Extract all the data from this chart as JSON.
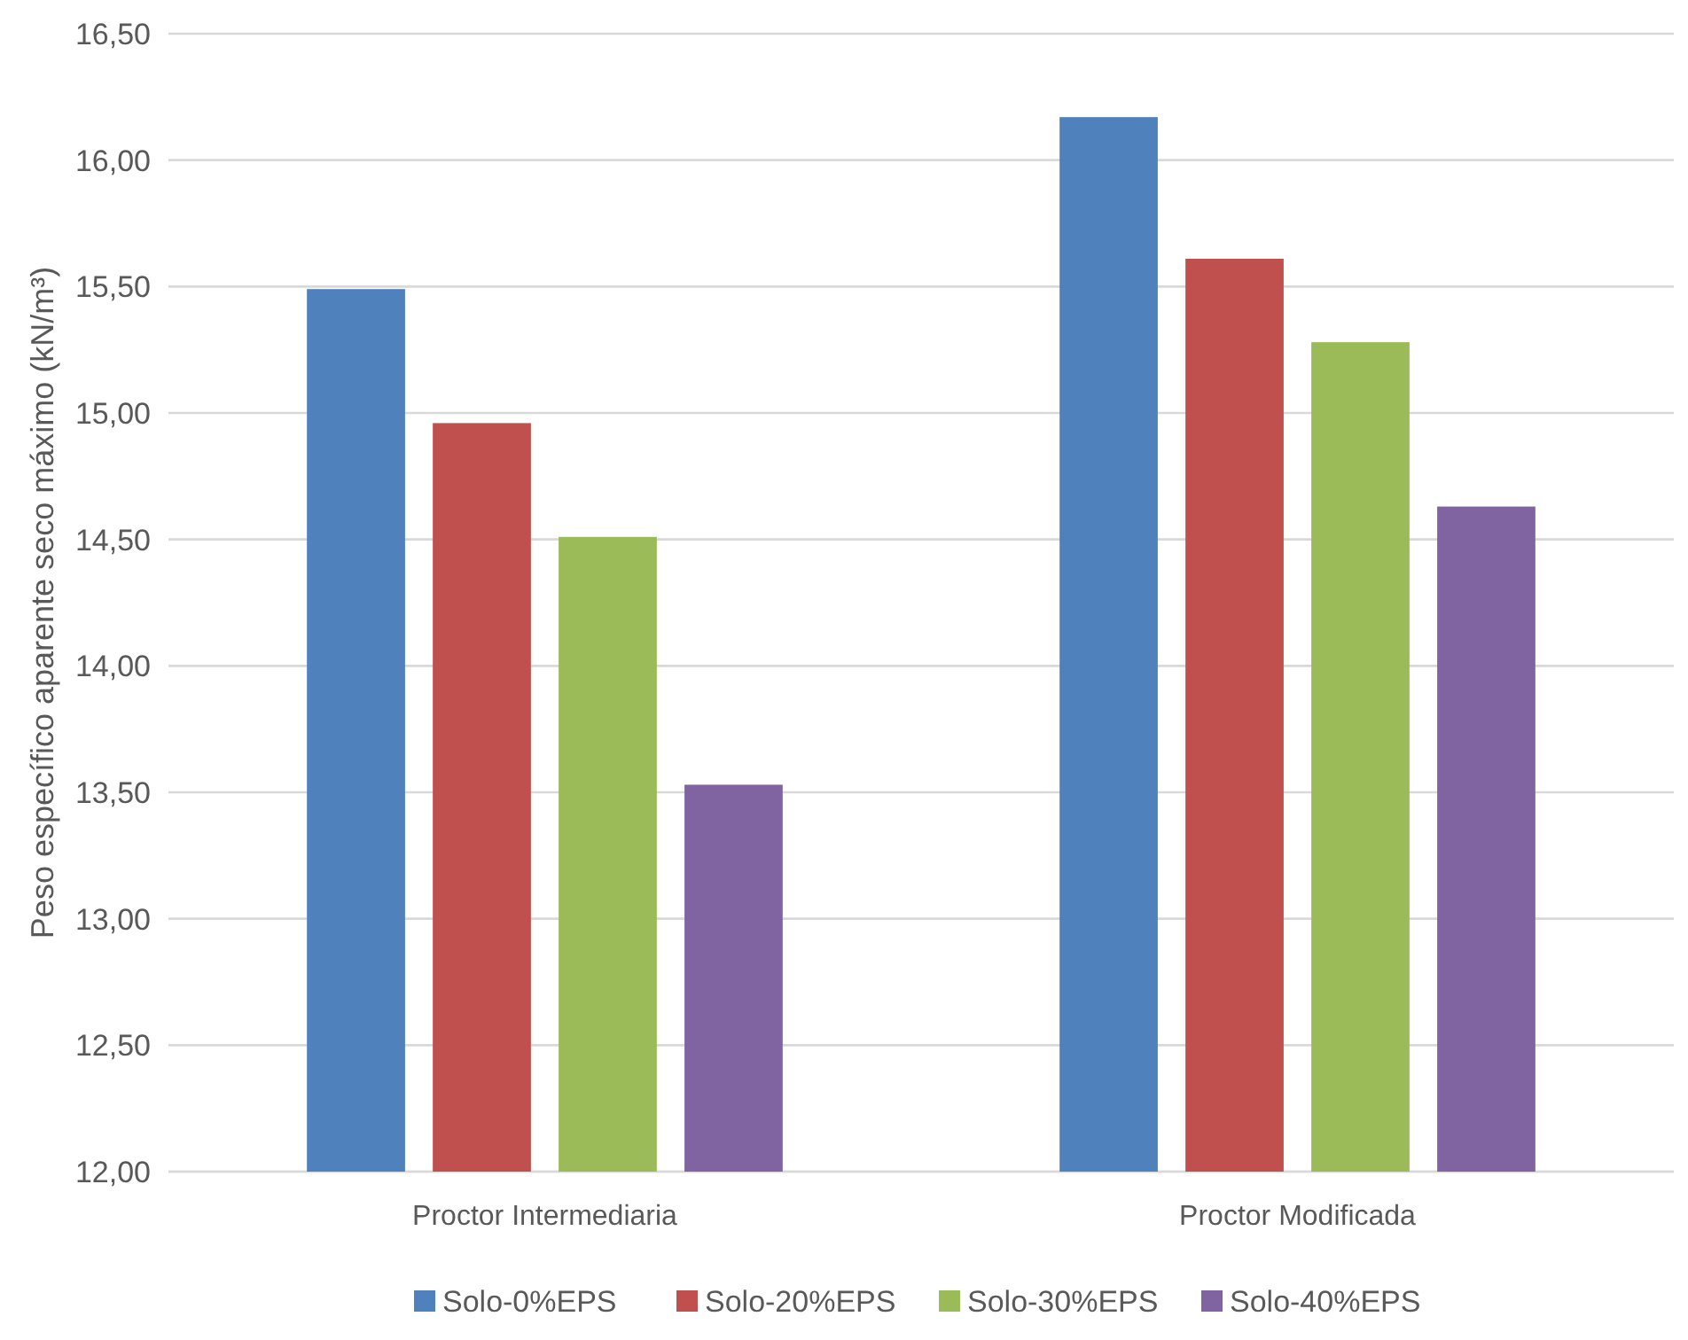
{
  "chart_data": {
    "type": "bar",
    "ylabel": "Peso específico aparente seco máximo (kN/m³)",
    "categories": [
      "Proctor Intermediaria",
      "Proctor Modificada"
    ],
    "series": [
      {
        "name": "Solo-0%EPS",
        "color": "#4f81bd",
        "values": [
          15.49,
          16.17
        ]
      },
      {
        "name": "Solo-20%EPS",
        "color": "#c0504d",
        "values": [
          14.96,
          15.61
        ]
      },
      {
        "name": "Solo-30%EPS",
        "color": "#9bbb59",
        "values": [
          14.51,
          15.28
        ]
      },
      {
        "name": "Solo-40%EPS",
        "color": "#8064a2",
        "values": [
          13.53,
          14.63
        ]
      }
    ],
    "ylim": [
      12,
      16.5
    ],
    "yticks": [
      {
        "value": 12,
        "label": "12,00"
      },
      {
        "value": 12.5,
        "label": "12,50"
      },
      {
        "value": 13,
        "label": "13,00"
      },
      {
        "value": 13.5,
        "label": "13,50"
      },
      {
        "value": 14,
        "label": "14,00"
      },
      {
        "value": 14.5,
        "label": "14,50"
      },
      {
        "value": 15,
        "label": "15,00"
      },
      {
        "value": 15.5,
        "label": "15,50"
      },
      {
        "value": 16,
        "label": "16,00"
      },
      {
        "value": 16.5,
        "label": "16,50"
      }
    ],
    "grid": "y",
    "legend": "bottom"
  }
}
